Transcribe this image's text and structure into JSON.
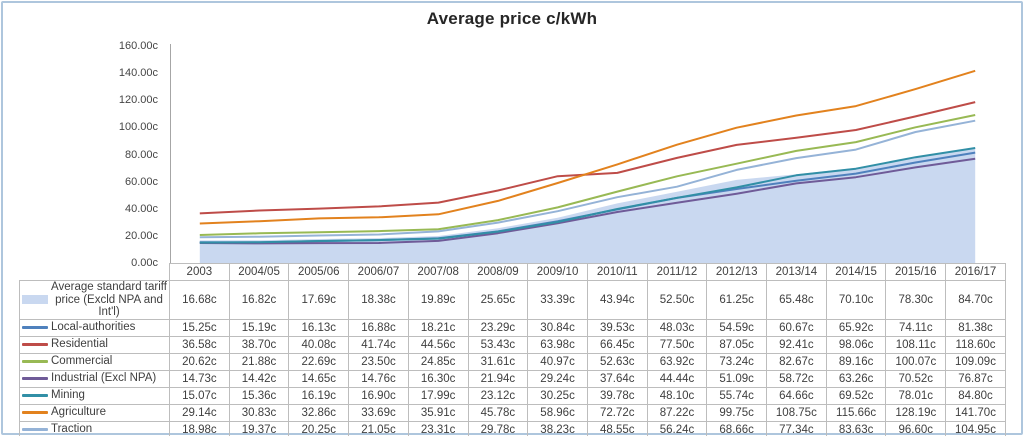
{
  "title": "Average price c/kWh",
  "chart_data": {
    "type": "area+line",
    "title": "Average price c/kWh",
    "categories": [
      "2003",
      "2004/05",
      "2005/06",
      "2006/07",
      "2007/08",
      "2008/09",
      "2009/10",
      "2010/11",
      "2011/12",
      "2012/13",
      "2013/14",
      "2014/15",
      "2015/16",
      "2016/17"
    ],
    "series": [
      {
        "name": "Average standard tariff price (Excld NPA and Int'l)",
        "type": "area",
        "color": "#c9d8f0",
        "values": [
          16.68,
          16.82,
          17.69,
          18.38,
          19.89,
          25.65,
          33.39,
          43.94,
          52.5,
          61.25,
          65.48,
          70.1,
          78.3,
          84.7
        ]
      },
      {
        "name": "Local-authorities",
        "type": "line",
        "color": "#4f81bd",
        "values": [
          15.25,
          15.19,
          16.13,
          16.88,
          18.21,
          23.29,
          30.84,
          39.53,
          48.03,
          54.59,
          60.67,
          65.92,
          74.11,
          81.38
        ]
      },
      {
        "name": "Residential",
        "type": "line",
        "color": "#be4c48",
        "values": [
          36.58,
          38.7,
          40.08,
          41.74,
          44.56,
          53.43,
          63.98,
          66.45,
          77.5,
          87.05,
          92.41,
          98.06,
          108.11,
          118.6
        ]
      },
      {
        "name": "Commercial",
        "type": "line",
        "color": "#98b954",
        "values": [
          20.62,
          21.88,
          22.69,
          23.5,
          24.85,
          31.61,
          40.97,
          52.63,
          63.92,
          73.24,
          82.67,
          89.16,
          100.07,
          109.09
        ]
      },
      {
        "name": "Industrial (Excl NPA)",
        "type": "line",
        "color": "#6f5b98",
        "values": [
          14.73,
          14.42,
          14.65,
          14.76,
          16.3,
          21.94,
          29.24,
          37.64,
          44.44,
          51.09,
          58.72,
          63.26,
          70.52,
          76.87
        ]
      },
      {
        "name": "Mining",
        "type": "line",
        "color": "#318fa6",
        "values": [
          15.07,
          15.36,
          16.19,
          16.9,
          17.99,
          23.12,
          30.25,
          39.78,
          48.1,
          55.74,
          64.66,
          69.52,
          78.01,
          84.8
        ]
      },
      {
        "name": "Agriculture",
        "type": "line",
        "color": "#e2821e",
        "values": [
          29.14,
          30.83,
          32.86,
          33.69,
          35.91,
          45.78,
          58.96,
          72.72,
          87.22,
          99.75,
          108.75,
          115.66,
          128.19,
          141.7
        ]
      },
      {
        "name": "Traction",
        "type": "line",
        "color": "#95b3d7",
        "values": [
          18.98,
          19.37,
          20.25,
          21.05,
          23.31,
          29.78,
          38.23,
          48.55,
          56.24,
          68.66,
          77.34,
          83.63,
          96.6,
          104.95
        ]
      }
    ],
    "ylim": [
      0,
      160
    ],
    "y_ticks": [
      "0.00c",
      "20.00c",
      "40.00c",
      "60.00c",
      "80.00c",
      "100.00c",
      "120.00c",
      "140.00c",
      "160.00c"
    ],
    "value_suffix": "c",
    "grid": false,
    "legend_position": "table-row-headers"
  },
  "table": {
    "corner_label": ""
  }
}
